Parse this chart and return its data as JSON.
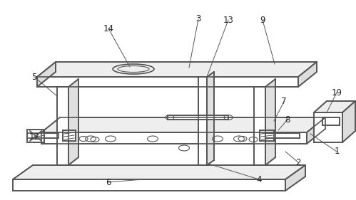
{
  "bg_color": "#ffffff",
  "line_color": "#555555",
  "line_width": 1.2,
  "thin_lw": 0.8,
  "figsize": [
    4.99,
    2.81
  ],
  "dpi": 100
}
